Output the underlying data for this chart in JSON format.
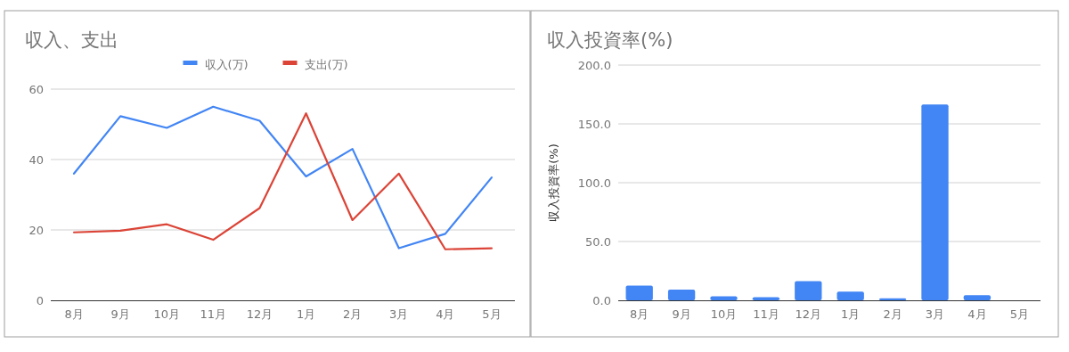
{
  "chart_data": [
    {
      "type": "line",
      "title": "収入、支出",
      "categories": [
        "8月",
        "9月",
        "10月",
        "11月",
        "12月",
        "1月",
        "2月",
        "3月",
        "4月",
        "5月"
      ],
      "series": [
        {
          "name": "収入(万)",
          "color": "#4285f4",
          "values": [
            36,
            52.3,
            49,
            55,
            51,
            35.2,
            43,
            14.8,
            18.9,
            34.9
          ]
        },
        {
          "name": "支出(万)",
          "color": "#db4437",
          "values": [
            19.3,
            19.8,
            21.6,
            17.2,
            26.2,
            53.1,
            22.8,
            36,
            14.5,
            14.8
          ]
        }
      ],
      "ylim": [
        0,
        60
      ],
      "yticks": [
        0,
        20,
        40,
        60
      ],
      "grid": "y",
      "legend": "top"
    },
    {
      "type": "bar",
      "title": "収入投資率(%)",
      "ylabel": "収入投資率(%)",
      "categories": [
        "8月",
        "9月",
        "10月",
        "11月",
        "12月",
        "1月",
        "2月",
        "3月",
        "4月",
        "5月"
      ],
      "values": [
        12.5,
        9,
        3.5,
        2.6,
        16.3,
        7.3,
        1.7,
        166.5,
        4.4,
        0
      ],
      "color": "#4285f4",
      "ylim": [
        0,
        200
      ],
      "yticks": [
        {
          "value": 0,
          "label": "0.0"
        },
        {
          "value": 50,
          "label": "50.0"
        },
        {
          "value": 100,
          "label": "100.0"
        },
        {
          "value": 150,
          "label": "150.0"
        },
        {
          "value": 200,
          "label": "200.0"
        }
      ],
      "grid": "y"
    }
  ]
}
